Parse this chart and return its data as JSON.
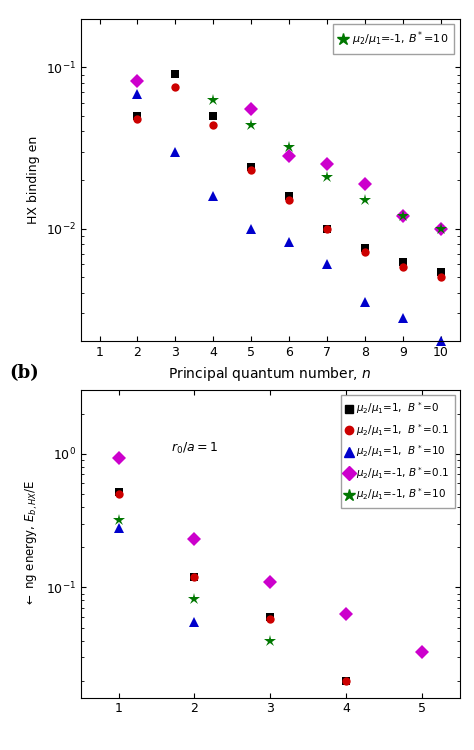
{
  "panel_a": {
    "n_values": [
      2,
      3,
      4,
      5,
      6,
      7,
      8,
      9,
      10
    ],
    "black_square": [
      0.05,
      0.091,
      0.05,
      0.024,
      0.016,
      0.01,
      0.0076,
      0.0062,
      0.0054
    ],
    "red_circle": [
      0.048,
      0.076,
      0.044,
      0.023,
      0.015,
      0.01,
      0.0072,
      0.0058,
      0.005
    ],
    "blue_triangle": [
      0.068,
      0.03,
      0.016,
      0.01,
      0.0083,
      0.006,
      0.0035,
      0.0028,
      0.002
    ],
    "magenta_diamond": [
      0.082,
      null,
      null,
      0.055,
      0.028,
      0.025,
      0.019,
      0.012,
      0.01
    ],
    "green_star": [
      null,
      null,
      0.063,
      0.044,
      0.032,
      0.021,
      0.015,
      0.012,
      0.01
    ],
    "ylim": [
      0.002,
      0.2
    ],
    "xlim": [
      0.5,
      10.5
    ],
    "yticks": [
      0.01,
      0.1
    ],
    "xticks": [
      1,
      2,
      3,
      4,
      5,
      6,
      7,
      8,
      9,
      10
    ]
  },
  "panel_b": {
    "n_values": [
      1,
      2,
      3,
      4,
      5
    ],
    "black_square": [
      0.52,
      0.12,
      0.06,
      0.02,
      null
    ],
    "red_circle": [
      0.5,
      0.12,
      0.058,
      0.02,
      null
    ],
    "blue_triangle": [
      0.28,
      0.055,
      null,
      null,
      null
    ],
    "magenta_diamond": [
      0.93,
      0.23,
      0.11,
      0.063,
      0.033
    ],
    "green_star": [
      0.32,
      0.082,
      0.04,
      null,
      null
    ],
    "ylim": [
      0.015,
      3.0
    ],
    "xlim": [
      0.5,
      5.5
    ],
    "yticks": [
      0.1,
      1.0
    ],
    "xticks": [
      1,
      2,
      3,
      4,
      5
    ],
    "annotation": "r_0/a = 1"
  },
  "series_styles": [
    {
      "key": "black_square",
      "color": "#000000",
      "marker": "s",
      "ms": 6
    },
    {
      "key": "red_circle",
      "color": "#cc0000",
      "marker": "o",
      "ms": 6
    },
    {
      "key": "blue_triangle",
      "color": "#0000cc",
      "marker": "^",
      "ms": 7
    },
    {
      "key": "magenta_diamond",
      "color": "#cc00cc",
      "marker": "D",
      "ms": 7
    },
    {
      "key": "green_star",
      "color": "#007700",
      "marker": "*",
      "ms": 9
    }
  ],
  "legend_a": [
    {
      "color": "#007700",
      "marker": "*",
      "ms": 9,
      "label": "$\\mu_2/\\mu_1$=-1, $B^*$=10"
    }
  ],
  "legend_b": [
    {
      "color": "#000000",
      "marker": "s",
      "ms": 6,
      "label": "$\\mu_2/\\mu_1$=1,  $B^*$=0"
    },
    {
      "color": "#cc0000",
      "marker": "o",
      "ms": 6,
      "label": "$\\mu_2/\\mu_1$=1,  $B^*$=0.1"
    },
    {
      "color": "#0000cc",
      "marker": "^",
      "ms": 7,
      "label": "$\\mu_2/\\mu_1$=1,  $B^*$=10"
    },
    {
      "color": "#cc00cc",
      "marker": "D",
      "ms": 7,
      "label": "$\\mu_2/\\mu_1$=-1, $B^*$=0.1"
    },
    {
      "color": "#007700",
      "marker": "*",
      "ms": 9,
      "label": "$\\mu_2/\\mu_1$=-1, $B^*$=10"
    }
  ],
  "xlabel": "Principal quantum number, $n$",
  "ylabel_a": "HX binding energy, $E_{b,HX}$/E",
  "ylabel_b": "HX binding energy, $E_{b,HX}$/E"
}
